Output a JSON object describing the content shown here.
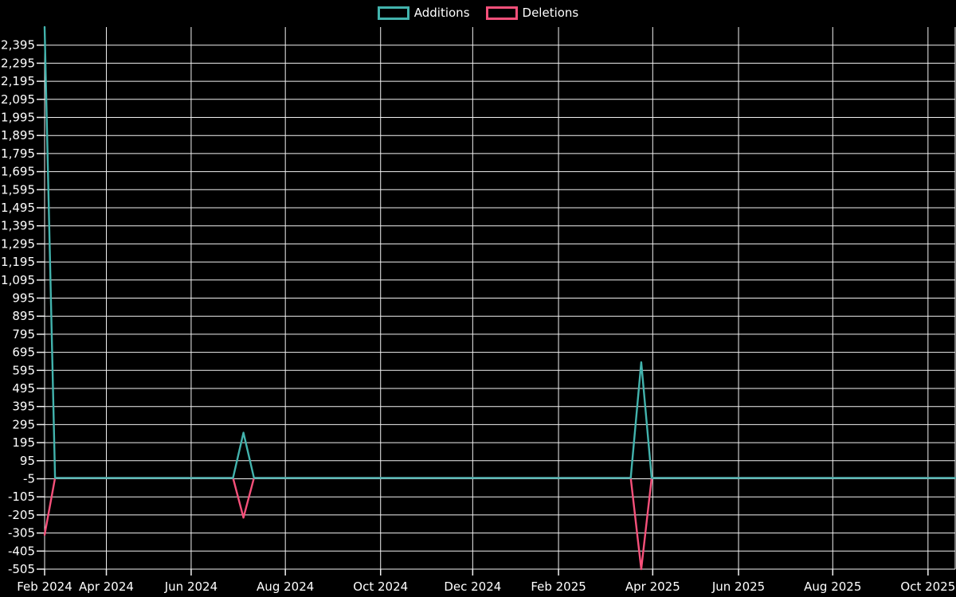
{
  "chart_data": {
    "type": "line",
    "title": "",
    "legend_position": "top",
    "background_color": "#000000",
    "text_color": "#ffffff",
    "grid_color": "#f2f2f2",
    "legend": [
      {
        "label": "Additions",
        "color": "#42b3ad"
      },
      {
        "label": "Deletions",
        "color": "#f6507a"
      }
    ],
    "x_axis": {
      "kind": "time-weekly",
      "weeks_total": 87,
      "ticks": [
        {
          "label": "Feb 2024",
          "week": 0
        },
        {
          "label": "Apr 2024",
          "week": 5.9
        },
        {
          "label": "Jun 2024",
          "week": 14
        },
        {
          "label": "Aug 2024",
          "week": 23
        },
        {
          "label": "Oct 2024",
          "week": 32.1
        },
        {
          "label": "Dec 2024",
          "week": 40.9
        },
        {
          "label": "Feb 2025",
          "week": 49.1
        },
        {
          "label": "Apr 2025",
          "week": 58.1
        },
        {
          "label": "Jun 2025",
          "week": 66.3
        },
        {
          "label": "Aug 2025",
          "week": 75.3
        },
        {
          "label": "Oct 2025",
          "week": 84.4
        }
      ]
    },
    "y_axis": {
      "min": -505,
      "max": 2495,
      "tick_step": 100,
      "tick_values": [
        2395,
        2295,
        2195,
        2095,
        1995,
        1895,
        1795,
        1695,
        1595,
        1495,
        1395,
        1295,
        1195,
        1095,
        995,
        895,
        795,
        695,
        595,
        495,
        395,
        295,
        195,
        95,
        -5,
        -105,
        -205,
        -305,
        -405,
        -505
      ]
    },
    "series": [
      {
        "name": "Additions",
        "color": "#42b3ad",
        "points": [
          [
            0,
            2495
          ],
          [
            1,
            0
          ],
          [
            18,
            0
          ],
          [
            19,
            250
          ],
          [
            20,
            0
          ],
          [
            56,
            0
          ],
          [
            57,
            640
          ],
          [
            58,
            0
          ],
          [
            87,
            0
          ]
        ]
      },
      {
        "name": "Deletions",
        "color": "#f6507a",
        "points": [
          [
            0,
            -315
          ],
          [
            1,
            0
          ],
          [
            18,
            0
          ],
          [
            19,
            -220
          ],
          [
            20,
            0
          ],
          [
            56,
            0
          ],
          [
            57,
            -505
          ],
          [
            58,
            0
          ],
          [
            87,
            0
          ]
        ]
      }
    ]
  }
}
